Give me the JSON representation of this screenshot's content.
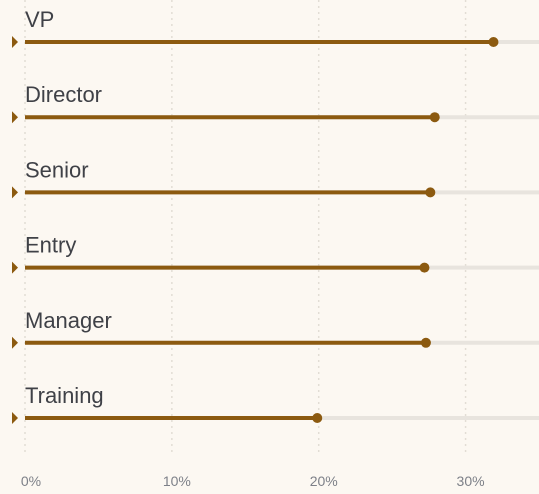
{
  "chart_data": {
    "type": "lollipop",
    "categories": [
      "VP",
      "Director",
      "Senior",
      "Entry",
      "Manager",
      "Training"
    ],
    "values": [
      31.9,
      27.9,
      27.6,
      27.2,
      27.3,
      19.9
    ],
    "color": "#8c5a10",
    "xlim": [
      0,
      35
    ],
    "xticks": [
      {
        "value": 0,
        "label": "0%"
      },
      {
        "value": 10,
        "label": "10%"
      },
      {
        "value": 20,
        "label": "20%"
      },
      {
        "value": 30,
        "label": "30%"
      }
    ],
    "grid": true
  }
}
